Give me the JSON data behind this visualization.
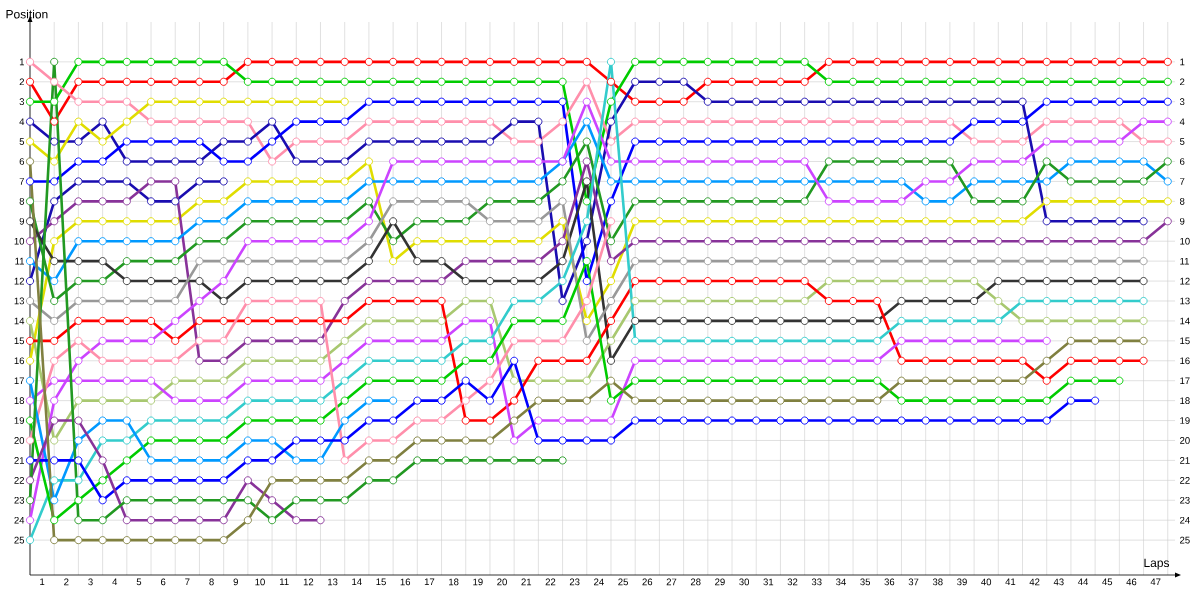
{
  "chart_data": {
    "type": "line",
    "xlabel": "Laps",
    "ylabel": "Position",
    "x": [
      0,
      1,
      2,
      3,
      4,
      5,
      6,
      7,
      8,
      9,
      10,
      11,
      12,
      13,
      14,
      15,
      16,
      17,
      18,
      19,
      20,
      21,
      22,
      23,
      24,
      25,
      26,
      27,
      28,
      29,
      30,
      31,
      32,
      33,
      34,
      35,
      36,
      37,
      38,
      39,
      40,
      41,
      42,
      43,
      44,
      45,
      46,
      47
    ],
    "xlim": [
      0,
      47.3
    ],
    "ylim": [
      26.75,
      -1
    ],
    "y2lim": [
      26.75,
      -1
    ],
    "xticks": [
      {
        "value": 0,
        "label": null
      },
      {
        "value": 0.5,
        "label": "1"
      },
      {
        "value": 1,
        "label": null
      },
      {
        "value": 1.5,
        "label": "2"
      },
      {
        "value": 2,
        "label": null
      },
      {
        "value": 2.5,
        "label": "3"
      },
      {
        "value": 3,
        "label": null
      },
      {
        "value": 3.5,
        "label": "4"
      },
      {
        "value": 4,
        "label": null
      },
      {
        "value": 4.5,
        "label": "5"
      },
      {
        "value": 5,
        "label": null
      },
      {
        "value": 5.5,
        "label": "6"
      },
      {
        "value": 6,
        "label": null
      },
      {
        "value": 6.5,
        "label": "7"
      },
      {
        "value": 7,
        "label": null
      },
      {
        "value": 7.5,
        "label": "8"
      },
      {
        "value": 8,
        "label": null
      },
      {
        "value": 8.5,
        "label": "9"
      },
      {
        "value": 9,
        "label": null
      },
      {
        "value": 9.5,
        "label": "10"
      },
      {
        "value": 10,
        "label": null
      },
      {
        "value": 10.5,
        "label": "11"
      },
      {
        "value": 11,
        "label": null
      },
      {
        "value": 11.5,
        "label": "12"
      },
      {
        "value": 12,
        "label": null
      },
      {
        "value": 12.5,
        "label": "13"
      },
      {
        "value": 13,
        "label": null
      },
      {
        "value": 13.5,
        "label": "14"
      },
      {
        "value": 14,
        "label": null
      },
      {
        "value": 14.5,
        "label": "15"
      },
      {
        "value": 15,
        "label": null
      },
      {
        "value": 15.5,
        "label": "16"
      },
      {
        "value": 16,
        "label": null
      },
      {
        "value": 16.5,
        "label": "17"
      },
      {
        "value": 17,
        "label": null
      },
      {
        "value": 17.5,
        "label": "18"
      },
      {
        "value": 18,
        "label": null
      },
      {
        "value": 18.5,
        "label": "19"
      },
      {
        "value": 19,
        "label": null
      },
      {
        "value": 19.5,
        "label": "20"
      },
      {
        "value": 20,
        "label": null
      },
      {
        "value": 20.5,
        "label": "21"
      },
      {
        "value": 21,
        "label": null
      },
      {
        "value": 21.5,
        "label": "22"
      },
      {
        "value": 22,
        "label": null
      },
      {
        "value": 22.5,
        "label": "23"
      },
      {
        "value": 23,
        "label": null
      },
      {
        "value": 23.5,
        "label": "24"
      },
      {
        "value": 24,
        "label": null
      },
      {
        "value": 24.5,
        "label": "25"
      },
      {
        "value": 25,
        "label": null
      },
      {
        "value": 25.5,
        "label": "26"
      },
      {
        "value": 26,
        "label": null
      },
      {
        "value": 26.5,
        "label": "27"
      },
      {
        "value": 27,
        "label": null
      },
      {
        "value": 27.5,
        "label": "28"
      },
      {
        "value": 28,
        "label": null
      },
      {
        "value": 28.5,
        "label": "29"
      },
      {
        "value": 29,
        "label": null
      },
      {
        "value": 29.5,
        "label": "30"
      },
      {
        "value": 30,
        "label": null
      },
      {
        "value": 30.5,
        "label": "31"
      },
      {
        "value": 31,
        "label": null
      },
      {
        "value": 31.5,
        "label": "32"
      },
      {
        "value": 32,
        "label": null
      },
      {
        "value": 32.5,
        "label": "33"
      },
      {
        "value": 33,
        "label": null
      },
      {
        "value": 33.5,
        "label": "34"
      },
      {
        "value": 34,
        "label": null
      },
      {
        "value": 34.5,
        "label": "35"
      },
      {
        "value": 35,
        "label": null
      },
      {
        "value": 35.5,
        "label": "36"
      },
      {
        "value": 36,
        "label": null
      },
      {
        "value": 36.5,
        "label": "37"
      },
      {
        "value": 37,
        "label": null
      },
      {
        "value": 37.5,
        "label": "38"
      },
      {
        "value": 38,
        "label": null
      },
      {
        "value": 38.5,
        "label": "39"
      },
      {
        "value": 39,
        "label": null
      },
      {
        "value": 39.5,
        "label": "40"
      },
      {
        "value": 40,
        "label": null
      },
      {
        "value": 40.5,
        "label": "41"
      },
      {
        "value": 41,
        "label": null
      },
      {
        "value": 41.5,
        "label": "42"
      },
      {
        "value": 42,
        "label": null
      },
      {
        "value": 42.5,
        "label": "43"
      },
      {
        "value": 43,
        "label": null
      },
      {
        "value": 43.5,
        "label": "44"
      },
      {
        "value": 44,
        "label": null
      },
      {
        "value": 44.5,
        "label": "45"
      },
      {
        "value": 45,
        "label": null
      },
      {
        "value": 45.5,
        "label": "46"
      },
      {
        "value": 46,
        "label": null
      },
      {
        "value": 46.5,
        "label": "47"
      },
      {
        "value": 47,
        "label": null
      }
    ],
    "yticks": [
      1,
      2,
      3,
      4,
      5,
      6,
      7,
      8,
      9,
      10,
      11,
      12,
      13,
      14,
      15,
      16,
      17,
      18,
      19,
      20,
      21,
      22,
      23,
      24,
      25
    ],
    "y2ticks": [
      1,
      2,
      3,
      4,
      5,
      6,
      7,
      8,
      9,
      10,
      11,
      12,
      13,
      14,
      15,
      16,
      17,
      18,
      19,
      20,
      21,
      22,
      23,
      24,
      25
    ],
    "grid": true,
    "marker": "circle",
    "line_style": "solid",
    "series": [
      {
        "color": "#ff0000",
        "values": [
          2,
          4,
          2,
          2,
          2,
          2,
          2,
          2,
          2,
          1,
          1,
          1,
          1,
          1,
          1,
          1,
          1,
          1,
          1,
          1,
          1,
          1,
          1,
          1,
          2,
          3,
          3,
          3,
          2,
          2,
          2,
          2,
          2,
          1,
          1,
          1,
          1,
          1,
          1,
          1,
          1,
          1,
          1,
          1,
          1,
          1,
          1,
          1
        ]
      },
      {
        "color": "#00cc00",
        "values": [
          3,
          3,
          1,
          1,
          1,
          1,
          1,
          1,
          1,
          2,
          2,
          2,
          2,
          2,
          2,
          2,
          2,
          2,
          2,
          2,
          2,
          2,
          2,
          8,
          3,
          1,
          1,
          1,
          1,
          1,
          1,
          1,
          1,
          2,
          2,
          2,
          2,
          2,
          2,
          2,
          2,
          2,
          2,
          2,
          2,
          2,
          2,
          2
        ]
      },
      {
        "color": "#ff8fab",
        "values": [
          1,
          2,
          3,
          3,
          3,
          4,
          4,
          4,
          4,
          4,
          6,
          5,
          5,
          5,
          4,
          4,
          4,
          4,
          4,
          4,
          5,
          5,
          4,
          2,
          5,
          4,
          4,
          4,
          4,
          4,
          4,
          4,
          4,
          4,
          4,
          4,
          4,
          4,
          4,
          5,
          5,
          5,
          4,
          4,
          4,
          4,
          5,
          5
        ]
      },
      {
        "color": "#1a0db0",
        "values": [
          4,
          5,
          5,
          4,
          6,
          6,
          6,
          6,
          5,
          5,
          4,
          6,
          6,
          6,
          5,
          5,
          5,
          5,
          5,
          5,
          4,
          4,
          13,
          10,
          4,
          2,
          2,
          2,
          3,
          3,
          3,
          3,
          3,
          3,
          3,
          3,
          3,
          3,
          3,
          3,
          3,
          3,
          9,
          9,
          9,
          9,
          9,
          null
        ]
      },
      {
        "color": "#0000ff",
        "values": [
          7,
          7,
          6,
          6,
          5,
          5,
          5,
          5,
          6,
          6,
          5,
          4,
          4,
          4,
          3,
          3,
          3,
          3,
          3,
          3,
          3,
          3,
          3,
          12,
          8,
          5,
          5,
          5,
          5,
          5,
          5,
          5,
          5,
          5,
          5,
          5,
          5,
          5,
          5,
          4,
          4,
          4,
          3,
          3,
          3,
          3,
          3,
          3
        ]
      },
      {
        "color": "#e0dd00",
        "values": [
          5,
          6,
          4,
          5,
          4,
          3,
          3,
          3,
          3,
          3,
          3,
          3,
          3,
          3,
          null,
          null,
          null,
          null,
          null,
          null,
          null,
          null,
          null,
          null,
          null,
          null,
          null,
          null,
          null,
          null,
          null,
          null,
          null,
          null,
          null,
          null,
          null,
          null,
          null,
          null,
          null,
          null,
          null,
          null,
          null,
          null,
          null,
          null
        ]
      },
      {
        "color": "#e0dd00",
        "values": [
          16,
          10,
          9,
          9,
          9,
          9,
          9,
          8,
          8,
          7,
          7,
          7,
          7,
          7,
          6,
          11,
          10,
          10,
          10,
          10,
          10,
          10,
          9,
          14,
          12,
          9,
          9,
          9,
          9,
          9,
          9,
          9,
          9,
          9,
          9,
          9,
          9,
          9,
          9,
          9,
          9,
          9,
          8,
          8,
          8,
          8,
          8,
          8
        ]
      },
      {
        "color": "#1a0db0",
        "values": [
          12,
          8,
          7,
          7,
          7,
          8,
          8,
          7,
          7,
          null,
          null,
          null,
          null,
          null,
          null,
          null,
          null,
          null,
          null,
          null,
          null,
          null,
          null,
          null,
          null,
          null,
          null,
          null,
          null,
          null,
          null,
          null,
          null,
          null,
          null,
          null,
          null,
          null,
          null,
          null,
          null,
          null,
          null,
          null,
          null,
          null,
          null,
          null
        ]
      },
      {
        "color": "#883399",
        "values": [
          10,
          9,
          8,
          8,
          8,
          7,
          7,
          16,
          16,
          15,
          15,
          15,
          15,
          13,
          12,
          12,
          12,
          12,
          11,
          11,
          11,
          11,
          10,
          6,
          11,
          10,
          10,
          10,
          10,
          10,
          10,
          10,
          10,
          10,
          10,
          10,
          10,
          10,
          10,
          10,
          10,
          10,
          10,
          10,
          10,
          10,
          10,
          9
        ]
      },
      {
        "color": "#0099ff",
        "values": [
          11,
          12,
          10,
          10,
          10,
          10,
          10,
          9,
          9,
          8,
          8,
          8,
          8,
          8,
          7,
          7,
          7,
          7,
          7,
          7,
          7,
          7,
          6,
          4,
          7,
          7,
          7,
          7,
          7,
          7,
          7,
          7,
          7,
          7,
          7,
          7,
          7,
          8,
          8,
          7,
          7,
          7,
          7,
          6,
          6,
          6,
          6,
          7
        ]
      },
      {
        "color": "#229922",
        "values": [
          8,
          13,
          12,
          12,
          11,
          11,
          11,
          10,
          10,
          9,
          9,
          9,
          9,
          9,
          8,
          10,
          9,
          9,
          9,
          8,
          8,
          8,
          7,
          5,
          10,
          8,
          8,
          8,
          8,
          8,
          8,
          8,
          8,
          6,
          6,
          6,
          6,
          6,
          6,
          8,
          8,
          8,
          6,
          7,
          7,
          7,
          7,
          6
        ]
      },
      {
        "color": "#333333",
        "values": [
          9,
          11,
          11,
          11,
          12,
          12,
          12,
          12,
          13,
          12,
          12,
          12,
          12,
          12,
          11,
          9,
          11,
          11,
          12,
          12,
          12,
          12,
          11,
          7,
          16,
          14,
          14,
          14,
          14,
          14,
          14,
          14,
          14,
          14,
          14,
          14,
          13,
          13,
          13,
          13,
          12,
          12,
          12,
          12,
          12,
          12,
          12,
          null
        ]
      },
      {
        "color": "#999999",
        "values": [
          13,
          14,
          13,
          13,
          13,
          13,
          13,
          11,
          11,
          11,
          11,
          11,
          11,
          11,
          10,
          8,
          8,
          8,
          8,
          9,
          9,
          9,
          8,
          15,
          13,
          11,
          11,
          11,
          11,
          11,
          11,
          11,
          11,
          11,
          11,
          11,
          11,
          11,
          11,
          11,
          11,
          11,
          11,
          11,
          11,
          11,
          11,
          null
        ]
      },
      {
        "color": "#a8c870",
        "values": [
          14,
          20,
          18,
          18,
          18,
          18,
          17,
          17,
          17,
          16,
          16,
          16,
          16,
          15,
          14,
          14,
          14,
          14,
          13,
          13,
          17,
          17,
          17,
          17,
          15,
          13,
          13,
          13,
          13,
          13,
          13,
          13,
          13,
          12,
          12,
          12,
          12,
          12,
          12,
          12,
          13,
          14,
          14,
          14,
          14,
          14,
          14,
          null
        ]
      },
      {
        "color": "#ff0000",
        "values": [
          15,
          15,
          14,
          14,
          14,
          14,
          15,
          14,
          14,
          14,
          14,
          14,
          14,
          14,
          13,
          13,
          13,
          13,
          19,
          19,
          18,
          16,
          16,
          16,
          14,
          12,
          12,
          12,
          12,
          12,
          12,
          12,
          12,
          13,
          13,
          13,
          16,
          16,
          16,
          16,
          16,
          16,
          17,
          16,
          16,
          16,
          16,
          null
        ]
      },
      {
        "color": "#cc44ff",
        "values": [
          18,
          17,
          17,
          17,
          17,
          17,
          18,
          18,
          18,
          17,
          17,
          17,
          17,
          16,
          15,
          15,
          15,
          15,
          14,
          14,
          20,
          19,
          19,
          19,
          19,
          16,
          16,
          16,
          16,
          16,
          16,
          16,
          16,
          16,
          16,
          16,
          15,
          15,
          15,
          15,
          15,
          15,
          15,
          null,
          null,
          null,
          null,
          null
        ]
      },
      {
        "color": "#cc44ff",
        "values": [
          24,
          18,
          16,
          15,
          15,
          15,
          14,
          13,
          12,
          10,
          10,
          10,
          10,
          10,
          9,
          6,
          6,
          6,
          6,
          6,
          6,
          6,
          6,
          3,
          6,
          6,
          6,
          6,
          6,
          6,
          6,
          6,
          6,
          8,
          8,
          8,
          8,
          7,
          7,
          6,
          6,
          6,
          5,
          5,
          5,
          5,
          4,
          4
        ]
      },
      {
        "color": "#33cccc",
        "values": [
          25,
          22,
          22,
          20,
          20,
          19,
          19,
          19,
          19,
          18,
          18,
          18,
          18,
          17,
          16,
          16,
          16,
          16,
          15,
          15,
          13,
          13,
          12,
          9,
          1,
          15,
          15,
          15,
          15,
          15,
          15,
          15,
          15,
          15,
          15,
          15,
          14,
          14,
          14,
          14,
          14,
          13,
          13,
          13,
          13,
          13,
          13,
          null
        ]
      },
      {
        "color": "#00cc00",
        "values": [
          19,
          24,
          23,
          22,
          21,
          20,
          20,
          20,
          20,
          19,
          19,
          19,
          19,
          18,
          17,
          17,
          17,
          17,
          16,
          16,
          14,
          14,
          14,
          11,
          18,
          17,
          17,
          17,
          17,
          17,
          17,
          17,
          17,
          17,
          17,
          17,
          18,
          18,
          18,
          18,
          18,
          18,
          18,
          17,
          17,
          17,
          null,
          null
        ]
      },
      {
        "color": "#ff8fab",
        "values": [
          20,
          16,
          15,
          16,
          16,
          16,
          16,
          15,
          15,
          13,
          13,
          13,
          13,
          21,
          20,
          20,
          19,
          19,
          18,
          17,
          15,
          15,
          15,
          13,
          9,
          null,
          null,
          null,
          null,
          null,
          null,
          null,
          null,
          null,
          null,
          null,
          null,
          null,
          null,
          null,
          null,
          null,
          null,
          null,
          null,
          null,
          null,
          null
        ]
      },
      {
        "color": "#0099ff",
        "values": [
          17,
          23,
          20,
          19,
          19,
          21,
          21,
          21,
          21,
          20,
          20,
          21,
          21,
          19,
          18,
          18,
          null,
          null,
          null,
          null,
          null,
          null,
          null,
          null,
          null,
          null,
          null,
          null,
          null,
          null,
          null,
          null,
          null,
          null,
          null,
          null,
          null,
          null,
          null,
          null,
          null,
          null,
          null,
          null,
          null,
          null,
          null,
          null
        ]
      },
      {
        "color": "#0000ff",
        "values": [
          21,
          21,
          21,
          23,
          22,
          22,
          22,
          22,
          22,
          21,
          21,
          20,
          20,
          20,
          19,
          19,
          18,
          18,
          17,
          18,
          16,
          20,
          20,
          20,
          20,
          19,
          19,
          19,
          19,
          19,
          19,
          19,
          19,
          19,
          19,
          19,
          19,
          19,
          19,
          19,
          19,
          19,
          19,
          18,
          18,
          null,
          null,
          null
        ]
      },
      {
        "color": "#883399",
        "values": [
          22,
          19,
          19,
          21,
          24,
          24,
          24,
          24,
          24,
          22,
          23,
          24,
          24,
          null,
          null,
          null,
          null,
          null,
          null,
          null,
          null,
          null,
          null,
          null,
          null,
          null,
          null,
          null,
          null,
          null,
          null,
          null,
          null,
          null,
          null,
          null,
          null,
          null,
          null,
          null,
          null,
          null,
          null,
          null,
          null,
          null,
          null,
          null
        ]
      },
      {
        "color": "#229922",
        "values": [
          23,
          1,
          24,
          24,
          23,
          23,
          23,
          23,
          23,
          23,
          24,
          23,
          23,
          23,
          22,
          22,
          21,
          21,
          21,
          21,
          21,
          21,
          21,
          null,
          null,
          null,
          null,
          null,
          null,
          null,
          null,
          null,
          null,
          null,
          null,
          null,
          null,
          null,
          null,
          null,
          null,
          null,
          null,
          null,
          null,
          null,
          null,
          null
        ]
      },
      {
        "color": "#808040",
        "values": [
          6,
          25,
          25,
          25,
          25,
          25,
          25,
          25,
          25,
          24,
          22,
          22,
          22,
          22,
          21,
          21,
          20,
          20,
          20,
          20,
          19,
          18,
          18,
          18,
          17,
          18,
          18,
          18,
          18,
          18,
          18,
          18,
          18,
          18,
          18,
          18,
          17,
          17,
          17,
          17,
          17,
          17,
          16,
          15,
          15,
          15,
          15,
          null
        ]
      }
    ]
  }
}
